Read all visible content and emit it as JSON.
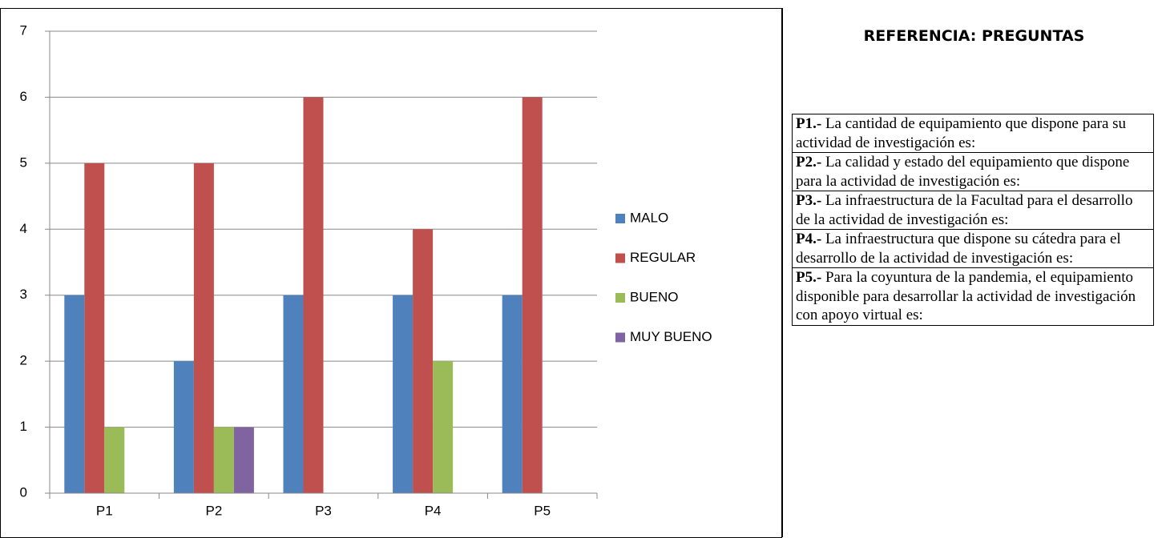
{
  "chart_data": {
    "type": "bar",
    "categories": [
      "P1",
      "P2",
      "P3",
      "P4",
      "P5"
    ],
    "series": [
      {
        "name": "MALO",
        "color": "#4f81bd",
        "values": [
          3,
          2,
          3,
          3,
          3
        ]
      },
      {
        "name": "REGULAR",
        "color": "#c0504d",
        "values": [
          5,
          5,
          6,
          4,
          6
        ]
      },
      {
        "name": "BUENO",
        "color": "#9bbb59",
        "values": [
          1,
          1,
          0,
          2,
          0
        ]
      },
      {
        "name": "MUY BUENO",
        "color": "#8064a2",
        "values": [
          0,
          1,
          0,
          0,
          0
        ]
      }
    ],
    "ylim": [
      0,
      7
    ],
    "yticks": [
      0,
      1,
      2,
      3,
      4,
      5,
      6,
      7
    ],
    "grid": true,
    "legend": "right"
  },
  "reference": {
    "title": "REFERENCIA: PREGUNTAS",
    "items": [
      {
        "label": "P1.-",
        "text": "La cantidad de equipamiento que dispone para su actividad de investigación es:"
      },
      {
        "label": "P2.-",
        "text": "La calidad y estado del equipamiento que dispone para la actividad de investigación es:"
      },
      {
        "label": "P3.-",
        "text": "La infraestructura de la Facultad para el desarrollo de la actividad de investigación es:"
      },
      {
        "label": "P4.-",
        "text": "La infraestructura que dispone su cátedra para el desarrollo de la actividad de investigación es:"
      },
      {
        "label": "P5.-",
        "text": "Para la coyuntura de la pandemia, el equipamiento disponible para desarrollar la actividad de investigación con apoyo virtual es:"
      }
    ]
  }
}
